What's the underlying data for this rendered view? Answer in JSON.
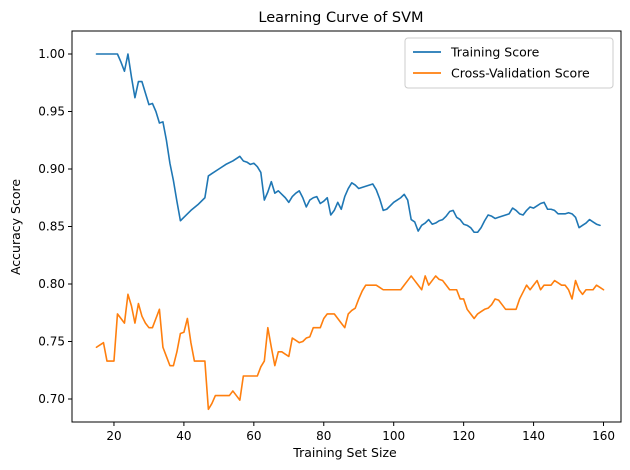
{
  "chart_data": {
    "type": "line",
    "title": "Learning Curve of SVM",
    "xlabel": "Training Set Size",
    "ylabel": "Accuracy Score",
    "xlim": [
      8,
      165
    ],
    "ylim": [
      0.68,
      1.02
    ],
    "xticks": [
      20,
      40,
      60,
      80,
      100,
      120,
      140,
      160
    ],
    "xtick_labels": [
      "20",
      "40",
      "60",
      "80",
      "100",
      "120",
      "140",
      "160"
    ],
    "yticks": [
      0.7,
      0.75,
      0.8,
      0.85,
      0.9,
      0.95,
      1.0
    ],
    "ytick_labels": [
      "0.70",
      "0.75",
      "0.80",
      "0.85",
      "0.90",
      "0.95",
      "1.00"
    ],
    "grid": false,
    "legend_position": "top-right",
    "series": [
      {
        "name": "Training Score",
        "color": "#1f77b4",
        "points": [
          [
            15,
            1.0
          ],
          [
            16,
            1.0
          ],
          [
            17,
            1.0
          ],
          [
            18,
            1.0
          ],
          [
            19,
            1.0
          ],
          [
            20,
            1.0
          ],
          [
            21,
            1.0
          ],
          [
            22,
            0.993
          ],
          [
            23,
            0.985
          ],
          [
            24,
            1.0
          ],
          [
            25,
            0.98
          ],
          [
            26,
            0.962
          ],
          [
            27,
            0.976
          ],
          [
            28,
            0.976
          ],
          [
            29,
            0.966
          ],
          [
            30,
            0.956
          ],
          [
            31,
            0.957
          ],
          [
            32,
            0.95
          ],
          [
            33,
            0.94
          ],
          [
            34,
            0.941
          ],
          [
            35,
            0.925
          ],
          [
            36,
            0.905
          ],
          [
            37,
            0.89
          ],
          [
            38,
            0.872
          ],
          [
            39,
            0.855
          ],
          [
            40,
            0.858
          ],
          [
            42,
            0.864
          ],
          [
            44,
            0.869
          ],
          [
            46,
            0.875
          ],
          [
            47,
            0.894
          ],
          [
            48,
            0.896
          ],
          [
            50,
            0.9
          ],
          [
            52,
            0.904
          ],
          [
            54,
            0.907
          ],
          [
            56,
            0.911
          ],
          [
            57,
            0.907
          ],
          [
            58,
            0.906
          ],
          [
            59,
            0.904
          ],
          [
            60,
            0.905
          ],
          [
            61,
            0.902
          ],
          [
            62,
            0.897
          ],
          [
            63,
            0.873
          ],
          [
            64,
            0.88
          ],
          [
            65,
            0.889
          ],
          [
            66,
            0.879
          ],
          [
            67,
            0.881
          ],
          [
            68,
            0.878
          ],
          [
            69,
            0.875
          ],
          [
            70,
            0.871
          ],
          [
            71,
            0.876
          ],
          [
            72,
            0.879
          ],
          [
            73,
            0.881
          ],
          [
            74,
            0.875
          ],
          [
            75,
            0.867
          ],
          [
            76,
            0.873
          ],
          [
            77,
            0.875
          ],
          [
            78,
            0.876
          ],
          [
            79,
            0.87
          ],
          [
            80,
            0.872
          ],
          [
            81,
            0.875
          ],
          [
            82,
            0.86
          ],
          [
            83,
            0.864
          ],
          [
            84,
            0.871
          ],
          [
            85,
            0.865
          ],
          [
            86,
            0.876
          ],
          [
            87,
            0.883
          ],
          [
            88,
            0.888
          ],
          [
            89,
            0.886
          ],
          [
            90,
            0.883
          ],
          [
            91,
            0.884
          ],
          [
            92,
            0.885
          ],
          [
            93,
            0.886
          ],
          [
            94,
            0.887
          ],
          [
            95,
            0.882
          ],
          [
            96,
            0.874
          ],
          [
            97,
            0.864
          ],
          [
            98,
            0.865
          ],
          [
            99,
            0.868
          ],
          [
            100,
            0.871
          ],
          [
            101,
            0.873
          ],
          [
            102,
            0.875
          ],
          [
            103,
            0.878
          ],
          [
            104,
            0.873
          ],
          [
            105,
            0.856
          ],
          [
            106,
            0.854
          ],
          [
            107,
            0.846
          ],
          [
            108,
            0.851
          ],
          [
            109,
            0.853
          ],
          [
            110,
            0.856
          ],
          [
            111,
            0.852
          ],
          [
            112,
            0.853
          ],
          [
            113,
            0.855
          ],
          [
            114,
            0.856
          ],
          [
            115,
            0.859
          ],
          [
            116,
            0.863
          ],
          [
            117,
            0.864
          ],
          [
            118,
            0.858
          ],
          [
            119,
            0.856
          ],
          [
            120,
            0.852
          ],
          [
            121,
            0.851
          ],
          [
            122,
            0.849
          ],
          [
            123,
            0.845
          ],
          [
            124,
            0.845
          ],
          [
            125,
            0.849
          ],
          [
            126,
            0.855
          ],
          [
            127,
            0.86
          ],
          [
            128,
            0.859
          ],
          [
            129,
            0.857
          ],
          [
            130,
            0.858
          ],
          [
            131,
            0.859
          ],
          [
            132,
            0.86
          ],
          [
            133,
            0.861
          ],
          [
            134,
            0.866
          ],
          [
            135,
            0.864
          ],
          [
            136,
            0.861
          ],
          [
            137,
            0.86
          ],
          [
            138,
            0.864
          ],
          [
            139,
            0.867
          ],
          [
            140,
            0.866
          ],
          [
            141,
            0.868
          ],
          [
            142,
            0.87
          ],
          [
            143,
            0.871
          ],
          [
            144,
            0.865
          ],
          [
            145,
            0.865
          ],
          [
            146,
            0.864
          ],
          [
            147,
            0.861
          ],
          [
            148,
            0.861
          ],
          [
            149,
            0.861
          ],
          [
            150,
            0.862
          ],
          [
            151,
            0.861
          ],
          [
            152,
            0.858
          ],
          [
            153,
            0.849
          ],
          [
            154,
            0.851
          ],
          [
            155,
            0.853
          ],
          [
            156,
            0.856
          ],
          [
            157,
            0.854
          ],
          [
            158,
            0.852
          ],
          [
            159,
            0.851
          ]
        ]
      },
      {
        "name": "Cross-Validation Score",
        "color": "#ff7f0e",
        "points": [
          [
            15,
            0.745
          ],
          [
            16,
            0.747
          ],
          [
            17,
            0.749
          ],
          [
            18,
            0.733
          ],
          [
            19,
            0.733
          ],
          [
            20,
            0.733
          ],
          [
            21,
            0.774
          ],
          [
            22,
            0.77
          ],
          [
            23,
            0.766
          ],
          [
            24,
            0.791
          ],
          [
            25,
            0.781
          ],
          [
            26,
            0.766
          ],
          [
            27,
            0.783
          ],
          [
            28,
            0.772
          ],
          [
            29,
            0.766
          ],
          [
            30,
            0.762
          ],
          [
            31,
            0.762
          ],
          [
            32,
            0.77
          ],
          [
            33,
            0.778
          ],
          [
            34,
            0.745
          ],
          [
            35,
            0.737
          ],
          [
            36,
            0.729
          ],
          [
            37,
            0.729
          ],
          [
            38,
            0.741
          ],
          [
            39,
            0.757
          ],
          [
            40,
            0.758
          ],
          [
            41,
            0.77
          ],
          [
            42,
            0.749
          ],
          [
            43,
            0.733
          ],
          [
            44,
            0.733
          ],
          [
            45,
            0.733
          ],
          [
            46,
            0.733
          ],
          [
            47,
            0.691
          ],
          [
            48,
            0.696
          ],
          [
            49,
            0.703
          ],
          [
            50,
            0.703
          ],
          [
            51,
            0.703
          ],
          [
            52,
            0.703
          ],
          [
            53,
            0.703
          ],
          [
            54,
            0.707
          ],
          [
            55,
            0.703
          ],
          [
            56,
            0.699
          ],
          [
            57,
            0.72
          ],
          [
            58,
            0.72
          ],
          [
            59,
            0.72
          ],
          [
            60,
            0.72
          ],
          [
            61,
            0.72
          ],
          [
            62,
            0.728
          ],
          [
            63,
            0.733
          ],
          [
            64,
            0.762
          ],
          [
            65,
            0.745
          ],
          [
            66,
            0.729
          ],
          [
            67,
            0.741
          ],
          [
            68,
            0.741
          ],
          [
            69,
            0.739
          ],
          [
            70,
            0.737
          ],
          [
            71,
            0.753
          ],
          [
            72,
            0.751
          ],
          [
            73,
            0.749
          ],
          [
            74,
            0.75
          ],
          [
            75,
            0.753
          ],
          [
            76,
            0.754
          ],
          [
            77,
            0.762
          ],
          [
            78,
            0.762
          ],
          [
            79,
            0.762
          ],
          [
            80,
            0.77
          ],
          [
            81,
            0.774
          ],
          [
            82,
            0.774
          ],
          [
            83,
            0.774
          ],
          [
            84,
            0.77
          ],
          [
            85,
            0.766
          ],
          [
            86,
            0.762
          ],
          [
            87,
            0.774
          ],
          [
            88,
            0.777
          ],
          [
            89,
            0.779
          ],
          [
            90,
            0.787
          ],
          [
            91,
            0.794
          ],
          [
            92,
            0.799
          ],
          [
            93,
            0.799
          ],
          [
            94,
            0.799
          ],
          [
            95,
            0.799
          ],
          [
            96,
            0.797
          ],
          [
            97,
            0.795
          ],
          [
            98,
            0.795
          ],
          [
            99,
            0.795
          ],
          [
            100,
            0.795
          ],
          [
            101,
            0.795
          ],
          [
            102,
            0.795
          ],
          [
            103,
            0.799
          ],
          [
            104,
            0.803
          ],
          [
            105,
            0.807
          ],
          [
            106,
            0.803
          ],
          [
            107,
            0.799
          ],
          [
            108,
            0.795
          ],
          [
            109,
            0.807
          ],
          [
            110,
            0.799
          ],
          [
            111,
            0.803
          ],
          [
            112,
            0.807
          ],
          [
            113,
            0.804
          ],
          [
            114,
            0.803
          ],
          [
            115,
            0.799
          ],
          [
            116,
            0.795
          ],
          [
            117,
            0.795
          ],
          [
            118,
            0.795
          ],
          [
            119,
            0.787
          ],
          [
            120,
            0.787
          ],
          [
            121,
            0.778
          ],
          [
            122,
            0.774
          ],
          [
            123,
            0.77
          ],
          [
            124,
            0.774
          ],
          [
            125,
            0.776
          ],
          [
            126,
            0.778
          ],
          [
            127,
            0.779
          ],
          [
            128,
            0.782
          ],
          [
            129,
            0.787
          ],
          [
            130,
            0.786
          ],
          [
            131,
            0.782
          ],
          [
            132,
            0.778
          ],
          [
            133,
            0.778
          ],
          [
            134,
            0.778
          ],
          [
            135,
            0.778
          ],
          [
            136,
            0.787
          ],
          [
            137,
            0.793
          ],
          [
            138,
            0.799
          ],
          [
            139,
            0.795
          ],
          [
            140,
            0.799
          ],
          [
            141,
            0.803
          ],
          [
            142,
            0.795
          ],
          [
            143,
            0.799
          ],
          [
            144,
            0.799
          ],
          [
            145,
            0.799
          ],
          [
            146,
            0.803
          ],
          [
            147,
            0.801
          ],
          [
            148,
            0.799
          ],
          [
            149,
            0.799
          ],
          [
            150,
            0.795
          ],
          [
            151,
            0.787
          ],
          [
            152,
            0.803
          ],
          [
            153,
            0.795
          ],
          [
            154,
            0.791
          ],
          [
            155,
            0.795
          ],
          [
            156,
            0.795
          ],
          [
            157,
            0.795
          ],
          [
            158,
            0.799
          ],
          [
            159,
            0.797
          ],
          [
            160,
            0.795
          ]
        ]
      }
    ]
  }
}
